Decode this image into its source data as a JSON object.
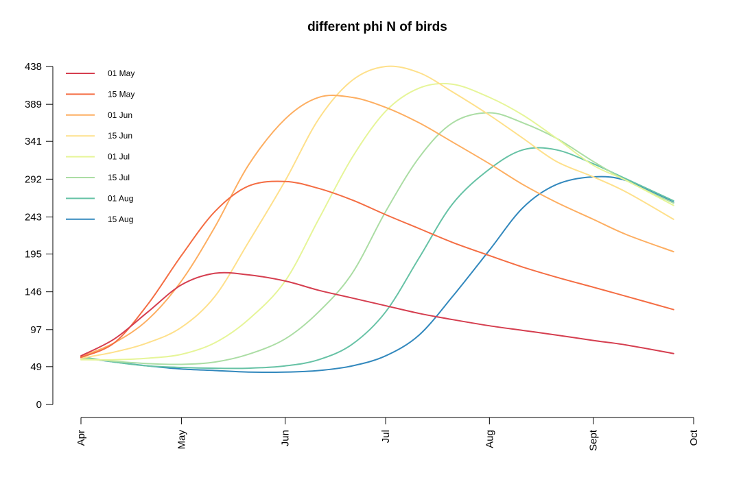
{
  "chart_data": {
    "type": "line",
    "title": "different phi N of birds",
    "xlabel": "",
    "ylabel": "",
    "x_axis": {
      "unit": "day_of_year",
      "ticks": [
        {
          "label": "Apr",
          "value": 91
        },
        {
          "label": "May",
          "value": 121
        },
        {
          "label": "Jun",
          "value": 152
        },
        {
          "label": "Jul",
          "value": 182
        },
        {
          "label": "Aug",
          "value": 213
        },
        {
          "label": "Sept",
          "value": 244
        },
        {
          "label": "Oct",
          "value": 274
        }
      ],
      "range": [
        91,
        274
      ]
    },
    "y_axis": {
      "ticks": [
        0,
        49,
        97,
        146,
        195,
        243,
        292,
        341,
        389,
        438
      ],
      "range": [
        0,
        438
      ]
    },
    "grid": false,
    "legend": {
      "position": "top-left"
    },
    "series": [
      {
        "name": "01 May",
        "color": "#d53e4f",
        "x": [
          91,
          101,
          111,
          121,
          131,
          141,
          152,
          162,
          172,
          182,
          192,
          202,
          213,
          223,
          233,
          244,
          254,
          268
        ],
        "y": [
          63,
          85,
          120,
          155,
          170,
          168,
          160,
          148,
          138,
          128,
          118,
          110,
          102,
          96,
          90,
          83,
          77,
          66
        ]
      },
      {
        "name": "15 May",
        "color": "#f46d43",
        "x": [
          91,
          101,
          111,
          121,
          131,
          141,
          152,
          162,
          172,
          182,
          192,
          202,
          213,
          223,
          233,
          244,
          254,
          268
        ],
        "y": [
          61,
          80,
          130,
          193,
          250,
          283,
          289,
          280,
          265,
          246,
          228,
          210,
          193,
          178,
          165,
          152,
          140,
          123
        ]
      },
      {
        "name": "01 Jun",
        "color": "#fdae61",
        "x": [
          91,
          101,
          111,
          121,
          131,
          141,
          152,
          162,
          172,
          182,
          192,
          202,
          213,
          223,
          233,
          244,
          254,
          268
        ],
        "y": [
          62,
          80,
          110,
          160,
          230,
          310,
          370,
          398,
          398,
          385,
          365,
          340,
          312,
          285,
          262,
          240,
          220,
          198
        ]
      },
      {
        "name": "15 Jun",
        "color": "#fee08b",
        "x": [
          91,
          101,
          111,
          121,
          131,
          141,
          152,
          162,
          172,
          182,
          192,
          202,
          213,
          223,
          233,
          244,
          254,
          268
        ],
        "y": [
          60,
          68,
          80,
          100,
          140,
          210,
          290,
          370,
          420,
          438,
          430,
          405,
          375,
          345,
          315,
          295,
          275,
          240
        ]
      },
      {
        "name": "01 Jul",
        "color": "#e6f598",
        "x": [
          91,
          101,
          111,
          121,
          131,
          141,
          152,
          162,
          172,
          182,
          192,
          202,
          213,
          223,
          233,
          244,
          254,
          268
        ],
        "y": [
          58,
          58,
          60,
          65,
          80,
          110,
          160,
          240,
          320,
          380,
          410,
          415,
          398,
          375,
          345,
          310,
          290,
          258
        ]
      },
      {
        "name": "15 Jul",
        "color": "#abdda4",
        "x": [
          91,
          101,
          111,
          121,
          131,
          141,
          152,
          162,
          172,
          182,
          192,
          202,
          213,
          223,
          233,
          244,
          254,
          268
        ],
        "y": [
          60,
          56,
          53,
          52,
          55,
          65,
          85,
          120,
          170,
          250,
          320,
          365,
          378,
          365,
          345,
          315,
          290,
          261
        ]
      },
      {
        "name": "01 Aug",
        "color": "#66c2a5",
        "x": [
          91,
          101,
          111,
          121,
          131,
          141,
          152,
          162,
          172,
          182,
          192,
          202,
          213,
          223,
          233,
          244,
          254,
          268
        ],
        "y": [
          62,
          55,
          50,
          48,
          47,
          47,
          50,
          58,
          78,
          120,
          190,
          260,
          305,
          330,
          330,
          312,
          292,
          264
        ]
      },
      {
        "name": "15 Aug",
        "color": "#3288bd",
        "x": [
          91,
          101,
          111,
          121,
          131,
          141,
          152,
          162,
          172,
          182,
          192,
          202,
          213,
          223,
          233,
          244,
          254,
          268
        ],
        "y": [
          61,
          55,
          50,
          46,
          44,
          42,
          42,
          44,
          50,
          63,
          90,
          140,
          200,
          255,
          285,
          295,
          290,
          262
        ]
      }
    ]
  }
}
